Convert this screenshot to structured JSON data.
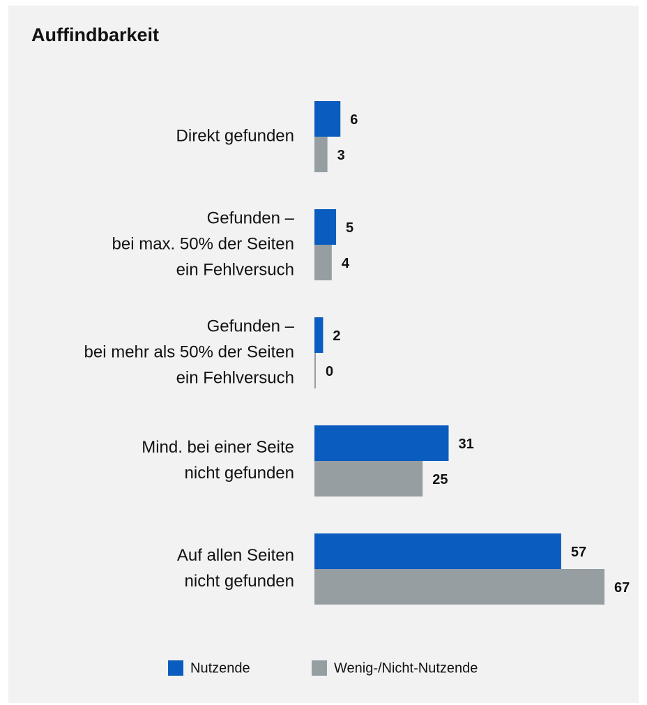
{
  "chart_data": {
    "type": "hbar",
    "title": "Auffindbarkeit",
    "categories": [
      [
        "Direkt gefunden"
      ],
      [
        "Gefunden –",
        "bei max. 50% der Seiten",
        "ein Fehlversuch"
      ],
      [
        "Gefunden –",
        "bei mehr als 50% der Seiten",
        "ein Fehlversuch"
      ],
      [
        "Mind. bei einer Seite",
        "nicht gefunden"
      ],
      [
        "Auf allen Seiten",
        "nicht gefunden"
      ]
    ],
    "series": [
      {
        "name": "Nutzende",
        "color": "#0a5cbf",
        "values": [
          6,
          5,
          2,
          31,
          57
        ]
      },
      {
        "name": "Wenig-/Nicht-Nutzende",
        "color": "#969ea2",
        "values": [
          3,
          4,
          0,
          25,
          67
        ]
      }
    ]
  }
}
